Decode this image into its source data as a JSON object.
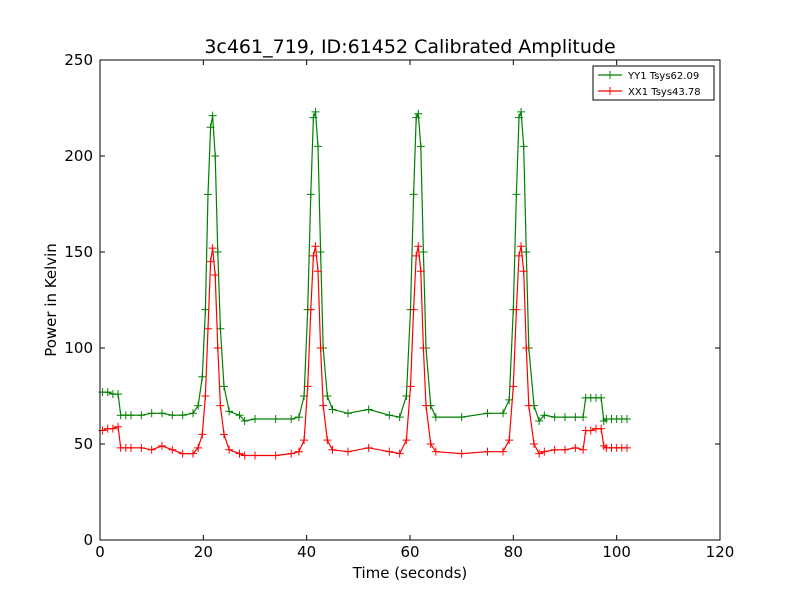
{
  "chart_data": {
    "type": "line",
    "title": "3c461_719, ID:61452 Calibrated Amplitude",
    "xlabel": "Time (seconds)",
    "ylabel": "Power in Kelvin",
    "xlim": [
      0,
      120
    ],
    "ylim": [
      0,
      250
    ],
    "xticks": [
      "0",
      "20",
      "40",
      "60",
      "80",
      "100",
      "120"
    ],
    "yticks": [
      "0",
      "50",
      "100",
      "150",
      "200",
      "250"
    ],
    "grid": false,
    "legend_position": "top-right",
    "marker": "+",
    "series": [
      {
        "name": "YY1 Tsys62.09",
        "color": "#008000",
        "x": [
          0.5,
          1.5,
          2.5,
          3.5,
          4.0,
          5,
          6,
          8,
          10,
          12,
          14,
          16,
          18,
          19,
          19.8,
          20.4,
          20.9,
          21.4,
          21.8,
          22.3,
          22.8,
          23.3,
          24,
          25,
          27,
          28,
          30,
          34,
          37,
          38.5,
          39.5,
          40.2,
          40.8,
          41.3,
          41.7,
          42.2,
          42.7,
          43.2,
          44,
          45,
          48,
          52,
          56,
          58,
          59.3,
          60.1,
          60.7,
          61.2,
          61.6,
          62.1,
          62.6,
          63.1,
          64,
          65,
          70,
          75,
          78,
          79.2,
          80,
          80.6,
          81.1,
          81.5,
          82,
          82.5,
          83,
          84,
          85,
          86,
          88,
          90,
          92,
          93.5,
          94,
          95,
          96,
          97,
          97.5,
          98,
          99,
          100,
          101,
          102
        ],
        "y": [
          77,
          77,
          76,
          76,
          65,
          65,
          65,
          65,
          66,
          66,
          65,
          65,
          66,
          70,
          85,
          120,
          180,
          215,
          221,
          200,
          150,
          110,
          80,
          67,
          65,
          62,
          63,
          63,
          63,
          64,
          75,
          120,
          180,
          220,
          223,
          205,
          150,
          100,
          75,
          68,
          66,
          68,
          65,
          64,
          75,
          120,
          180,
          220,
          222,
          205,
          150,
          100,
          70,
          64,
          64,
          66,
          66,
          73,
          120,
          180,
          220,
          223,
          205,
          150,
          100,
          70,
          62,
          65,
          64,
          64,
          64,
          64,
          74,
          74,
          74,
          74,
          62,
          63,
          63,
          63,
          63,
          63
        ]
      },
      {
        "name": "XX1 Tsys43.78",
        "color": "#ff0000",
        "x": [
          0.5,
          1.5,
          2.5,
          3.5,
          4.0,
          5,
          6,
          8,
          10,
          12,
          14,
          16,
          18,
          19,
          19.8,
          20.4,
          20.9,
          21.4,
          21.8,
          22.3,
          22.8,
          23.3,
          24,
          25,
          27,
          28,
          30,
          34,
          37,
          38.5,
          39.5,
          40.2,
          40.8,
          41.3,
          41.7,
          42.2,
          42.7,
          43.2,
          44,
          45,
          48,
          52,
          56,
          58,
          59.3,
          60.1,
          60.7,
          61.2,
          61.6,
          62.1,
          62.6,
          63.1,
          64,
          65,
          70,
          75,
          78,
          79.2,
          80,
          80.6,
          81.1,
          81.5,
          82,
          82.5,
          83,
          84,
          85,
          86,
          88,
          90,
          92,
          93.5,
          94,
          95,
          96,
          97,
          97.5,
          98,
          99,
          100,
          101,
          102
        ],
        "y": [
          57,
          58,
          58,
          59,
          48,
          48,
          48,
          48,
          47,
          49,
          47,
          45,
          45,
          48,
          55,
          75,
          110,
          145,
          152,
          138,
          100,
          70,
          55,
          47,
          45,
          44,
          44,
          44,
          45,
          46,
          52,
          80,
          120,
          148,
          153,
          140,
          100,
          70,
          52,
          47,
          46,
          48,
          46,
          45,
          52,
          80,
          120,
          148,
          153,
          140,
          100,
          70,
          50,
          46,
          45,
          46,
          46,
          52,
          80,
          120,
          148,
          153,
          140,
          100,
          70,
          50,
          45,
          46,
          47,
          47,
          48,
          47,
          57,
          57,
          58,
          58,
          49,
          48,
          48,
          48,
          48,
          48
        ]
      }
    ]
  }
}
